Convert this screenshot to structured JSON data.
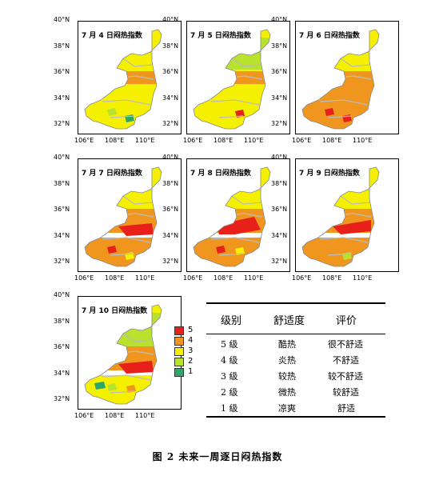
{
  "levels": [
    {
      "label": "5",
      "color": "#e8201a"
    },
    {
      "label": "4",
      "color": "#f0961e"
    },
    {
      "label": "3",
      "color": "#f5f000"
    },
    {
      "label": "2",
      "color": "#b8e22e"
    },
    {
      "label": "1",
      "color": "#2aa86a"
    }
  ],
  "axis": {
    "y_ticks": [
      "40°N",
      "38°N",
      "36°N",
      "34°N",
      "32°N"
    ],
    "x_ticks": [
      "106°E",
      "108°E",
      "110°E"
    ]
  },
  "panels": [
    {
      "title": "7 月 4 日闷热指数",
      "scheme": "d4"
    },
    {
      "title": "7 月 5 日闷热指数",
      "scheme": "d5"
    },
    {
      "title": "7 月 6 日闷热指数",
      "scheme": "d6"
    },
    {
      "title": "7 月 7 日闷热指数",
      "scheme": "d7"
    },
    {
      "title": "7 月 8 日闷热指数",
      "scheme": "d8"
    },
    {
      "title": "7 月 9 日闷热指数",
      "scheme": "d9"
    },
    {
      "title": "7 月 10 日闷热指数",
      "scheme": "d10"
    }
  ],
  "table": {
    "headers": [
      "级别",
      "舒适度",
      "评价"
    ],
    "rows": [
      [
        "5 级",
        "酷热",
        "很不舒适"
      ],
      [
        "4 级",
        "炎热",
        "不舒适"
      ],
      [
        "3 级",
        "较热",
        "较不舒适"
      ],
      [
        "2 级",
        "微热",
        "较舒适"
      ],
      [
        "1 级",
        "凉爽",
        "舒适"
      ]
    ]
  },
  "caption": "图 2 未来一周逐日闷热指数"
}
